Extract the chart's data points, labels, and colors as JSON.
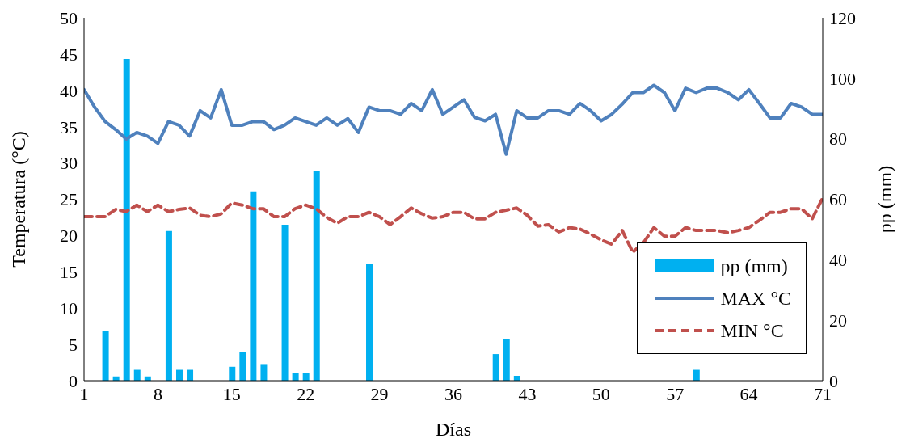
{
  "chart_data": {
    "type": "line",
    "xlabel": "Días",
    "ylabel": "Temperatura (°C)",
    "y2label": "pp (mm)",
    "x": [
      1,
      2,
      3,
      4,
      5,
      6,
      7,
      8,
      9,
      10,
      11,
      12,
      13,
      14,
      15,
      16,
      17,
      18,
      19,
      20,
      21,
      22,
      23,
      24,
      25,
      26,
      27,
      28,
      29,
      30,
      31,
      32,
      33,
      34,
      35,
      36,
      37,
      38,
      39,
      40,
      41,
      42,
      43,
      44,
      45,
      46,
      47,
      48,
      49,
      50,
      51,
      52,
      53,
      54,
      55,
      56,
      57,
      58,
      59,
      60,
      61,
      62,
      63,
      64,
      65,
      66,
      67,
      68,
      69,
      70,
      71
    ],
    "xlim": [
      1,
      71
    ],
    "xticks": [
      1,
      8,
      15,
      22,
      29,
      36,
      43,
      50,
      57,
      64,
      71
    ],
    "ylim": [
      0,
      50
    ],
    "yticks": [
      0,
      5,
      10,
      15,
      20,
      25,
      30,
      35,
      40,
      45,
      50
    ],
    "y2lim": [
      0,
      120
    ],
    "y2ticks": [
      0,
      20,
      40,
      60,
      80,
      100,
      120
    ],
    "grid": false,
    "legend": "bottom right",
    "series": [
      {
        "name": "pp (mm)",
        "type": "bar",
        "axis": "y2",
        "color": "#00b0f0",
        "values": [
          0,
          0,
          16.4,
          1.4,
          106.4,
          3.6,
          1.4,
          0,
          49.5,
          3.6,
          3.6,
          0,
          0,
          0,
          4.6,
          9.6,
          62.6,
          5.5,
          0,
          51.6,
          2.6,
          2.6,
          69.4,
          0,
          0,
          0,
          0,
          38.5,
          0,
          0,
          0,
          0,
          0,
          0,
          0,
          0,
          0,
          0,
          0,
          8.8,
          13.7,
          1.6,
          0,
          0,
          0,
          0,
          0,
          0,
          0,
          0,
          0,
          0,
          0,
          0,
          0,
          0,
          0,
          0,
          3.6,
          0,
          0,
          0,
          0,
          0,
          0,
          0,
          0,
          0,
          0,
          0,
          0
        ]
      },
      {
        "name": "MAX °C",
        "color": "#4f81bd",
        "line_style": "solid",
        "values": [
          40.1,
          37.7,
          35.7,
          34.6,
          33.3,
          34.2,
          33.7,
          32.7,
          35.7,
          35.2,
          33.7,
          37.2,
          36.2,
          40.1,
          35.2,
          35.2,
          35.7,
          35.7,
          34.6,
          35.2,
          36.2,
          35.7,
          35.2,
          36.2,
          35.2,
          36.1,
          34.2,
          37.7,
          37.2,
          37.2,
          36.7,
          38.2,
          37.2,
          40.1,
          36.7,
          37.7,
          38.7,
          36.3,
          35.8,
          36.7,
          31.2,
          37.2,
          36.2,
          36.2,
          37.2,
          37.2,
          36.7,
          38.2,
          37.2,
          35.8,
          36.7,
          38.1,
          39.7,
          39.7,
          40.7,
          39.7,
          37.2,
          40.3,
          39.7,
          40.3,
          40.3,
          39.7,
          38.7,
          40.1,
          38.2,
          36.2,
          36.2,
          38.2,
          37.7,
          36.7,
          36.7
        ]
      },
      {
        "name": "MIN °C",
        "color": "#c0504d",
        "line_style": "dashed",
        "values": [
          22.6,
          22.6,
          22.6,
          23.6,
          23.3,
          24.2,
          23.3,
          24.2,
          23.3,
          23.6,
          23.8,
          22.8,
          22.6,
          23.0,
          24.5,
          24.2,
          23.7,
          23.7,
          22.6,
          22.6,
          23.7,
          24.2,
          23.7,
          22.5,
          21.7,
          22.6,
          22.6,
          23.2,
          22.6,
          21.5,
          22.6,
          23.8,
          23.0,
          22.4,
          22.6,
          23.2,
          23.2,
          22.3,
          22.3,
          23.2,
          23.5,
          23.8,
          22.8,
          21.3,
          21.5,
          20.5,
          21.1,
          20.9,
          20.2,
          19.4,
          18.8,
          20.7,
          17.7,
          19.0,
          21.1,
          19.9,
          19.9,
          21.1,
          20.7,
          20.7,
          20.7,
          20.4,
          20.7,
          21.1,
          22.1,
          23.2,
          23.2,
          23.7,
          23.7,
          22.3,
          25.2
        ]
      }
    ]
  }
}
